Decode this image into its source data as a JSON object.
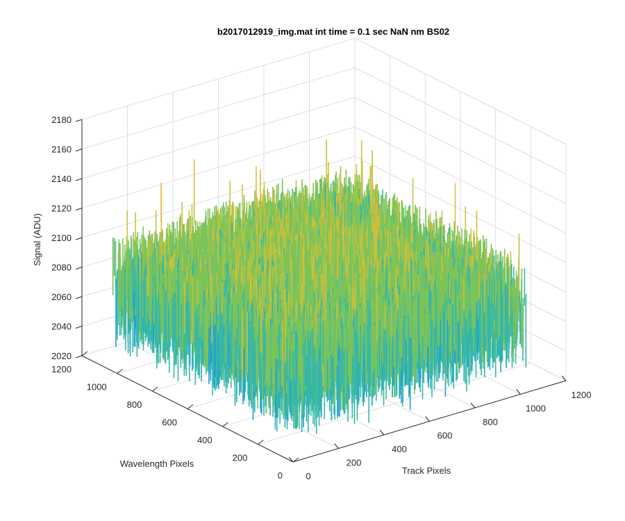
{
  "chart_data": {
    "type": "surface",
    "title": "b2017012919_img.mat int time = 0.1 sec  NaN nm BS02",
    "xlabel": "Track Pixels",
    "ylabel": "Wavelength Pixels",
    "zlabel": "Signal (ADU)",
    "xlim": [
      0,
      1200
    ],
    "ylim": [
      0,
      1200
    ],
    "zlim": [
      2020,
      2180
    ],
    "x_ticks": [
      "0",
      "200",
      "400",
      "600",
      "800",
      "1000",
      "1200"
    ],
    "y_ticks": [
      "0",
      "200",
      "400",
      "600",
      "800",
      "1000",
      "1200"
    ],
    "z_ticks": [
      "2020",
      "2040",
      "2060",
      "2080",
      "2100",
      "2120",
      "2140",
      "2160",
      "2180"
    ],
    "data_extent": {
      "x": [
        0,
        1024
      ],
      "y": [
        0,
        1024
      ]
    },
    "signal_mean": 2095,
    "signal_range": [
      2030,
      2165
    ],
    "colormap": [
      "#0072BD",
      "#1f9fd8",
      "#35b7a9",
      "#7cc45a",
      "#c9c13a",
      "#e8b83a"
    ],
    "grid": true,
    "view": "3d"
  }
}
